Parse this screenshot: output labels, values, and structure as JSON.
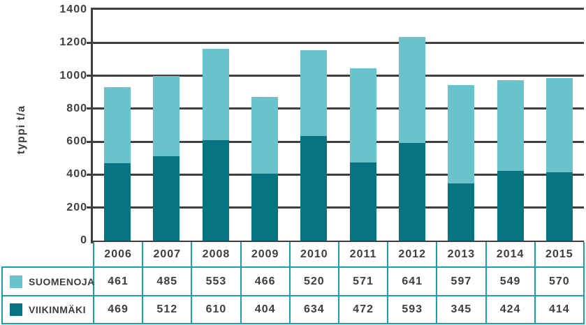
{
  "chart_data": {
    "type": "bar",
    "stacked": true,
    "title": "",
    "xlabel": "",
    "ylabel": "typpi t/a",
    "categories": [
      "2006",
      "2007",
      "2008",
      "2009",
      "2010",
      "2011",
      "2012",
      "2013",
      "2014",
      "2015"
    ],
    "series": [
      {
        "name": "SUOMENOJA",
        "color": "#68c3cc",
        "stack_order": "top",
        "values": [
          461,
          485,
          553,
          466,
          520,
          571,
          641,
          597,
          549,
          570
        ]
      },
      {
        "name": "VIIKINMÄKI",
        "color": "#077481",
        "stack_order": "bottom",
        "values": [
          469,
          512,
          610,
          404,
          634,
          472,
          593,
          345,
          424,
          414
        ]
      }
    ],
    "ylim": [
      0,
      1400
    ],
    "yticks": [
      0,
      200,
      400,
      600,
      800,
      1000,
      1200,
      1400
    ],
    "grid": true,
    "legend_position": "table-left",
    "colors": {
      "axis": "#3f3f41",
      "grid": "#3f3f41",
      "text": "#3d3d3f",
      "table_border": "#1c9fae"
    }
  }
}
